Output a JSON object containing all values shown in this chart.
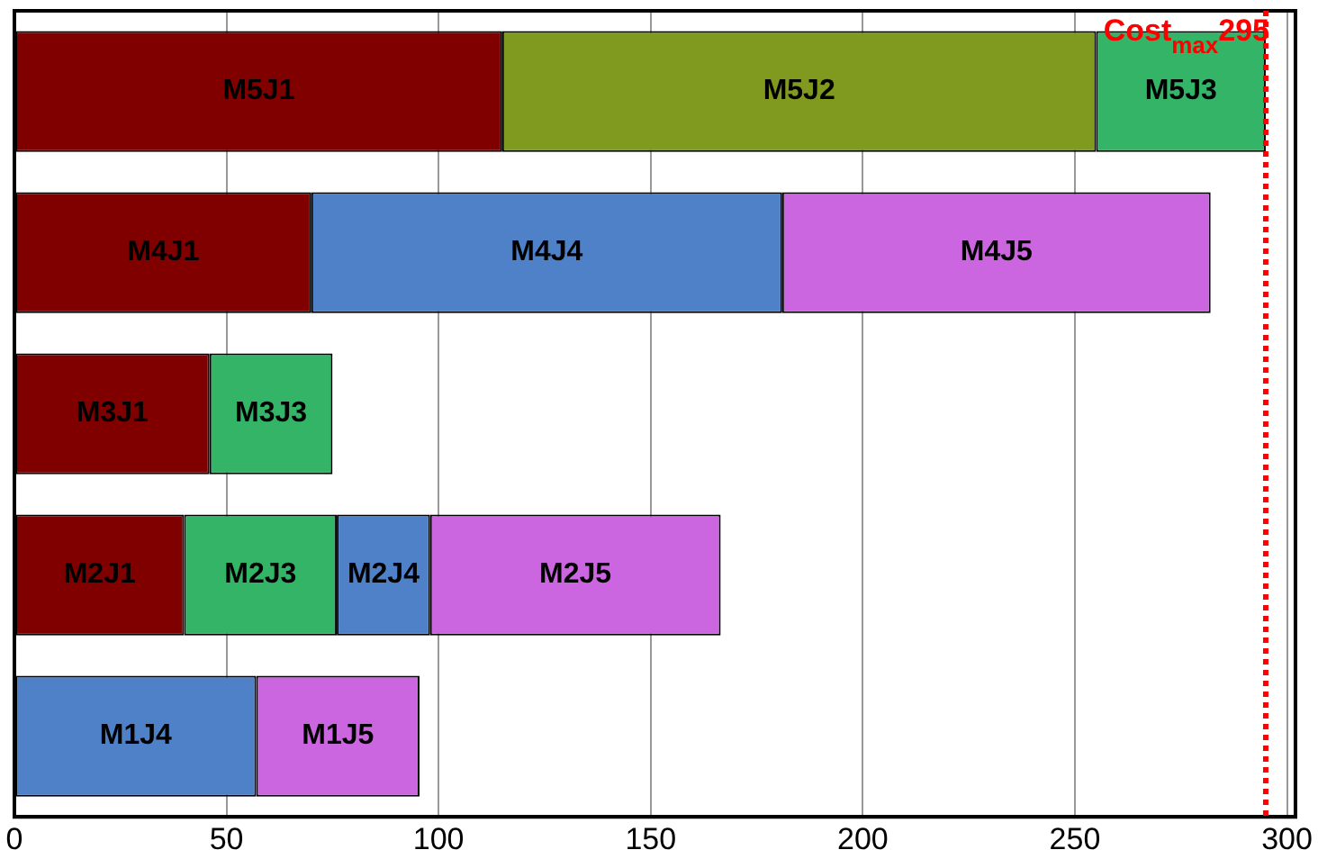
{
  "chart_data": {
    "type": "bar",
    "orientation": "horizontal",
    "categories": [
      null,
      null,
      null,
      null,
      null
    ],
    "series": [
      {
        "color": "#800000",
        "base": [
          0,
          0,
          0,
          0,
          null
        ],
        "values": [
          115,
          70,
          46,
          40,
          null
        ],
        "value_labels": [
          "M5J1",
          "M4J1",
          "M3J1",
          "M2J1",
          null
        ]
      },
      {
        "color": "#7f9a1e",
        "base": [
          115,
          null,
          null,
          null,
          null
        ],
        "values": [
          140,
          null,
          null,
          null,
          null
        ],
        "value_labels": [
          "M5J2",
          null,
          null,
          null,
          null
        ]
      },
      {
        "color": "#33b466",
        "base": [
          255,
          null,
          46,
          40,
          null
        ],
        "values": [
          40,
          null,
          29,
          36,
          null
        ],
        "value_labels": [
          "M5J3",
          null,
          "M3J3",
          "M2J3",
          null
        ]
      },
      {
        "color": "#4f81c9",
        "base": [
          null,
          70,
          null,
          76,
          0
        ],
        "values": [
          null,
          111,
          null,
          22,
          57
        ],
        "value_labels": [
          null,
          "M4J4",
          null,
          "M2J4",
          "M1J4"
        ]
      },
      {
        "color": "#cc66e0",
        "base": [
          null,
          181,
          null,
          98,
          57
        ],
        "values": [
          null,
          101,
          null,
          68.5,
          38.5
        ],
        "value_labels": [
          null,
          "M4J5",
          null,
          "M2J5",
          "M1J5"
        ]
      }
    ],
    "xlim": [
      0,
      302
    ],
    "xticks": [
      0,
      50,
      100,
      150,
      200,
      250,
      300
    ],
    "ref_lines": [
      {
        "axis": "x",
        "value": 295,
        "label": "Cost$_{max}$295",
        "color": "#ff0000",
        "line_style": "dotted"
      }
    ],
    "grid": "x",
    "tick_labels": "x",
    "legend": false
  }
}
